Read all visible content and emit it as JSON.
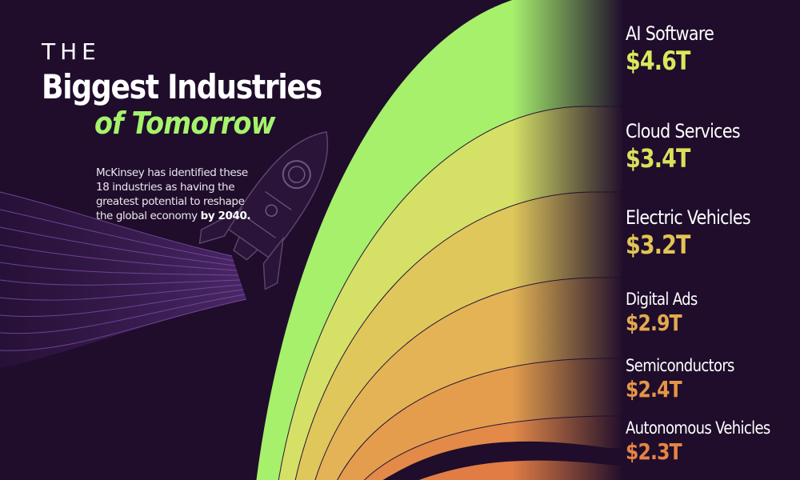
{
  "header": {
    "title_prefix": "THE",
    "title_main": "Biggest Industries",
    "title_accent": "of Tomorrow",
    "subtitle_text": "McKinsey has identified these 18 industries as having the greatest potential to reshape the global economy",
    "subtitle_bold": "by 2040."
  },
  "chart_data": {
    "type": "area",
    "unit": "$T",
    "categories": [
      "AI Software",
      "Cloud Services",
      "Electric Vehicles",
      "Digital Ads",
      "Semiconductors",
      "Autonomous Vehicles"
    ],
    "values": [
      4.6,
      3.4,
      3.2,
      2.9,
      2.4,
      2.3
    ],
    "value_labels": [
      "$4.6T",
      "$3.4T",
      "$3.2T",
      "$2.9T",
      "$2.4T",
      "$2.3T"
    ],
    "colors": [
      "#a6f06c",
      "#d5e166",
      "#dfc75c",
      "#e3b355",
      "#e39d4d",
      "#e38a48"
    ],
    "label_colors": [
      "#d9e95b",
      "#dbe05a",
      "#e2c454",
      "#e4a84f",
      "#e59547",
      "#e48444"
    ]
  }
}
